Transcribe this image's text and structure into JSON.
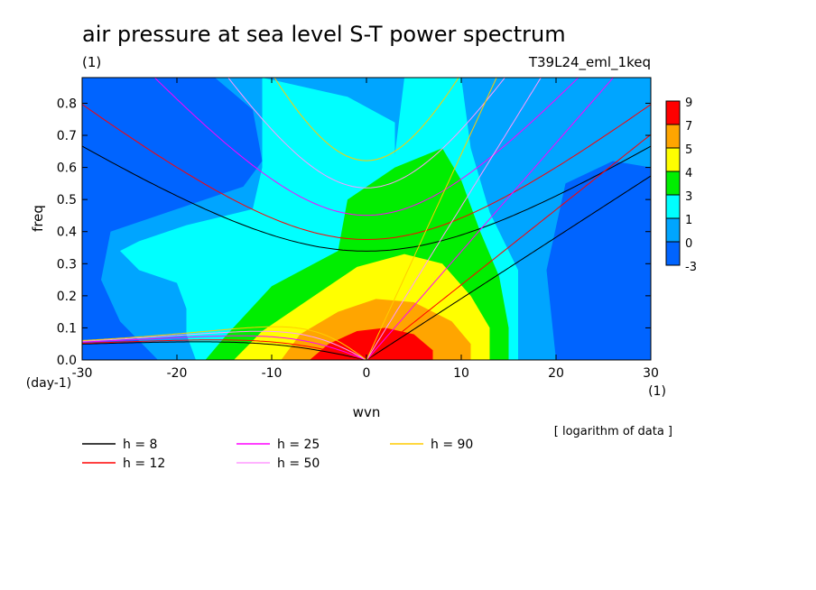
{
  "chart_data": {
    "type": "contour",
    "title": "air pressure at sea level S-T power spectrum",
    "units": "(1)",
    "experiment": "T39L24_eml_1keq",
    "xlabel": "wvn",
    "x_units": "(1)",
    "ylabel": "freq",
    "y_units": "(day-1)",
    "note": "[ logarithm of data ]",
    "xlim": [
      -30,
      30
    ],
    "ylim": [
      0,
      0.88
    ],
    "xticks": [
      -30,
      -20,
      -10,
      0,
      10,
      20,
      30
    ],
    "yticks": [
      0.0,
      0.1,
      0.2,
      0.3,
      0.4,
      0.5,
      0.6,
      0.7,
      0.8
    ],
    "colorbar": {
      "labels": [
        "9",
        "7",
        "5",
        "4",
        "3",
        "1",
        "0",
        "-3"
      ],
      "colors": [
        "#ff0000",
        "#ffa500",
        "#ffff00",
        "#00ee00",
        "#00ffff",
        "#00a5ff",
        "#0064ff"
      ]
    },
    "background_color": "#0064ff",
    "contour_regions": [
      {
        "level_color": "#00a5ff",
        "points": [
          [
            -30,
            0.88
          ],
          [
            -16,
            0.88
          ],
          [
            -12,
            0.78
          ],
          [
            -11,
            0.62
          ],
          [
            -13,
            0.54
          ],
          [
            -20,
            0.47
          ],
          [
            -27,
            0.4
          ],
          [
            -28,
            0.25
          ],
          [
            -26,
            0.12
          ],
          [
            -22,
            0
          ],
          [
            20,
            0
          ],
          [
            19,
            0.28
          ],
          [
            21,
            0.55
          ],
          [
            26,
            0.62
          ],
          [
            30,
            0.6
          ],
          [
            30,
            0.88
          ],
          [
            -30,
            0.88
          ]
        ]
      },
      {
        "level_color": "#00ffff",
        "points": [
          [
            -11,
            0.88
          ],
          [
            -2,
            0.82
          ],
          [
            3,
            0.74
          ],
          [
            3,
            0.64
          ],
          [
            4,
            0.88
          ],
          [
            10,
            0.88
          ],
          [
            11,
            0.66
          ],
          [
            13,
            0.46
          ],
          [
            16,
            0.28
          ],
          [
            16,
            0
          ],
          [
            -18,
            0
          ],
          [
            -19,
            0.08
          ],
          [
            -19,
            0.16
          ],
          [
            -20,
            0.24
          ],
          [
            -24,
            0.28
          ],
          [
            -26,
            0.34
          ],
          [
            -24,
            0.37
          ],
          [
            -19,
            0.42
          ],
          [
            -12,
            0.47
          ],
          [
            -11,
            0.6
          ],
          [
            -11,
            0.88
          ]
        ]
      },
      {
        "level_color": "#00ee00",
        "points": [
          [
            -17,
            0
          ],
          [
            -15,
            0.07
          ],
          [
            -10,
            0.23
          ],
          [
            -3,
            0.34
          ],
          [
            -2,
            0.5
          ],
          [
            3,
            0.6
          ],
          [
            8,
            0.66
          ],
          [
            10,
            0.56
          ],
          [
            12,
            0.4
          ],
          [
            14,
            0.26
          ],
          [
            15,
            0.1
          ],
          [
            15,
            0
          ],
          [
            -17,
            0
          ]
        ]
      },
      {
        "level_color": "#ffff00",
        "points": [
          [
            -14,
            0
          ],
          [
            -11,
            0.09
          ],
          [
            -6,
            0.19
          ],
          [
            -1,
            0.29
          ],
          [
            4,
            0.33
          ],
          [
            8,
            0.3
          ],
          [
            11,
            0.2
          ],
          [
            13,
            0.1
          ],
          [
            13,
            0
          ],
          [
            -14,
            0
          ]
        ]
      },
      {
        "level_color": "#ffa500",
        "points": [
          [
            -9,
            0
          ],
          [
            -7,
            0.08
          ],
          [
            -3,
            0.15
          ],
          [
            1,
            0.19
          ],
          [
            5,
            0.18
          ],
          [
            9,
            0.12
          ],
          [
            11,
            0.05
          ],
          [
            11,
            0
          ],
          [
            -9,
            0
          ]
        ]
      },
      {
        "level_color": "#ff0000",
        "points": [
          [
            -6,
            0
          ],
          [
            -4,
            0.05
          ],
          [
            -1,
            0.09
          ],
          [
            2,
            0.1
          ],
          [
            5,
            0.08
          ],
          [
            7,
            0.03
          ],
          [
            7,
            0
          ],
          [
            -6,
            0
          ]
        ]
      }
    ],
    "series": [
      {
        "name": "h = 8",
        "value": 8,
        "color": "#000000"
      },
      {
        "name": "h = 12",
        "value": 12,
        "color": "#ff0000"
      },
      {
        "name": "h = 25",
        "value": 25,
        "color": "#ff00ff"
      },
      {
        "name": "h = 50",
        "value": 50,
        "color": "#ff99ff"
      },
      {
        "name": "h = 90",
        "value": 90,
        "color": "#ffcc00"
      }
    ],
    "legend_placement": "bottom"
  }
}
